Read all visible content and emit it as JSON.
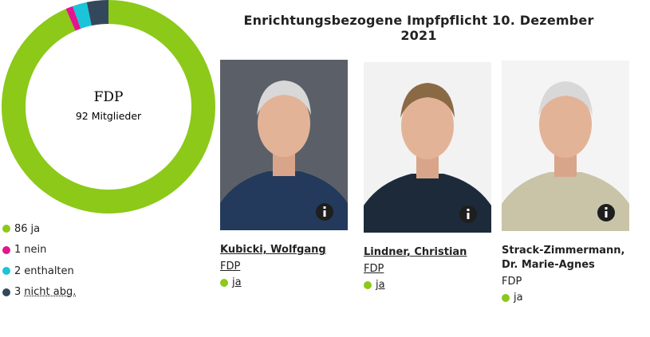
{
  "chart_data": {
    "type": "donut",
    "center_title": "FDP",
    "center_subtitle": "92 Mitglieder",
    "categories": [
      "ja",
      "nein",
      "enthalten",
      "nicht abg."
    ],
    "values": [
      86,
      1,
      2,
      3
    ],
    "colors": [
      "#8cc919",
      "#e2168e",
      "#1bc4d8",
      "#33485a"
    ]
  },
  "page": {
    "title": "Enrichtungsbezogene Impfpflicht 10. Dezember 2021",
    "members": [
      {
        "name": "Kubicki, Wolfgang",
        "party": "FDP",
        "vote": "ja"
      },
      {
        "name": "Lindner, Christian",
        "party": "FDP",
        "vote": "ja"
      },
      {
        "name": "Strack-Zimmermann, Dr. Marie-Agnes",
        "party": "FDP",
        "vote": "ja"
      }
    ]
  }
}
